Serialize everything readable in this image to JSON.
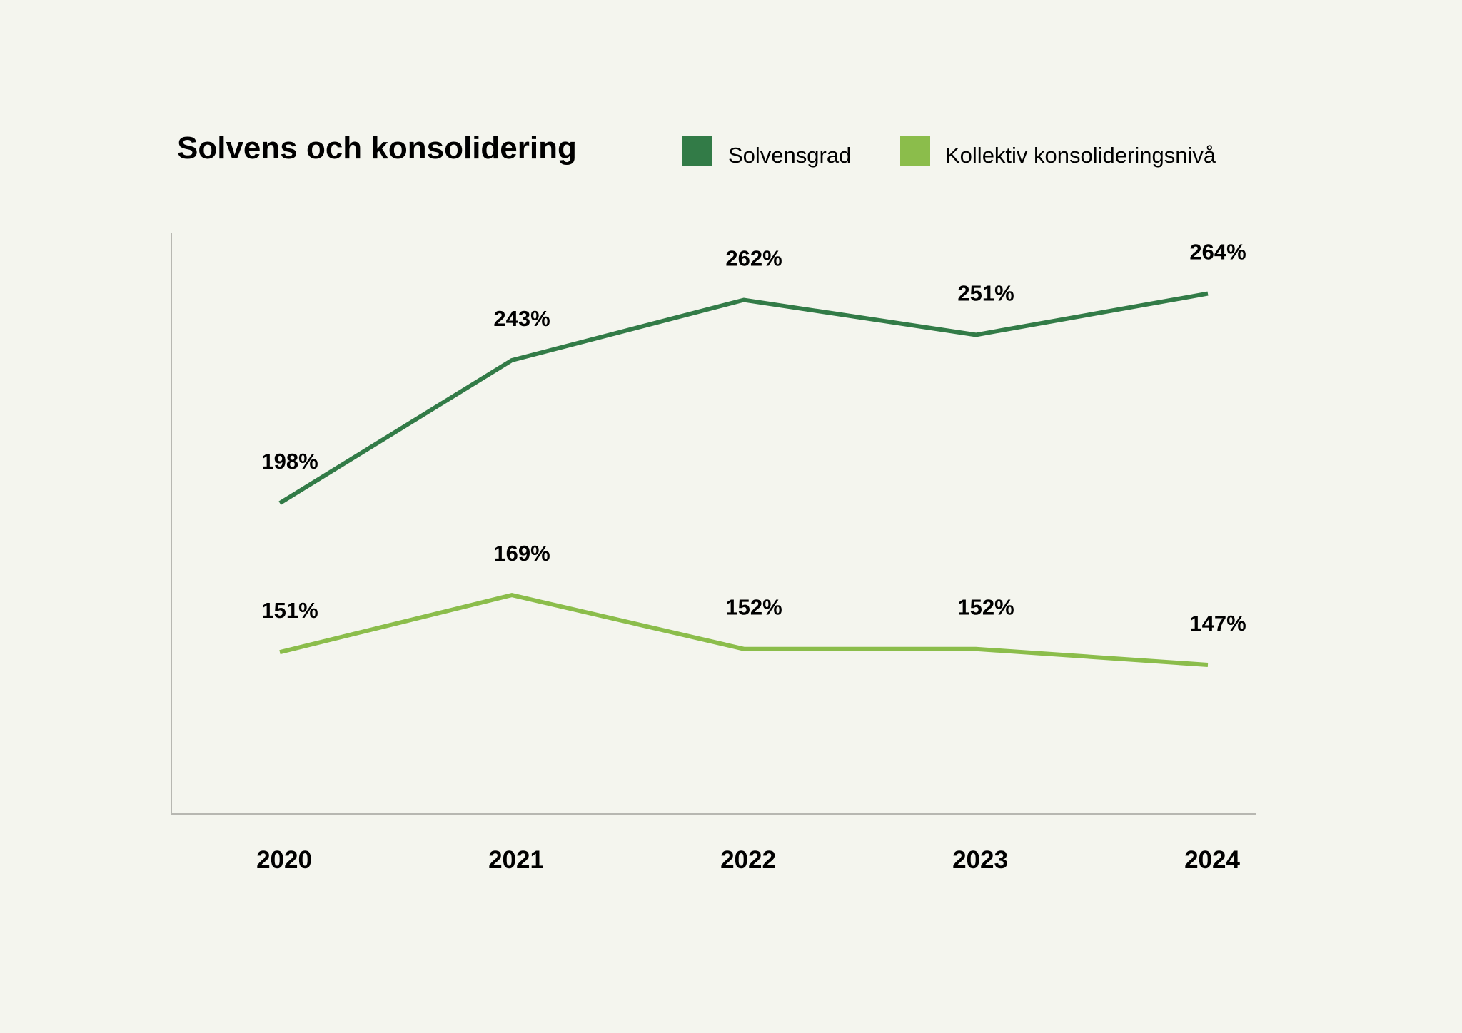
{
  "chart_data": {
    "type": "line",
    "title": "Solvens och konsolidering",
    "xlabel": "",
    "ylabel": "",
    "categories": [
      "2020",
      "2021",
      "2022",
      "2023",
      "2024"
    ],
    "series": [
      {
        "name": "Solvensgrad",
        "values": [
          198,
          243,
          262,
          251,
          264
        ],
        "labels": [
          "198%",
          "243%",
          "262%",
          "251%",
          "264%"
        ],
        "color": "#327b47"
      },
      {
        "name": "Kollektiv konsolideringsnivå",
        "values": [
          151,
          169,
          152,
          152,
          147
        ],
        "labels": [
          "151%",
          "169%",
          "152%",
          "152%",
          "147%"
        ],
        "color": "#8bbd4b"
      }
    ],
    "ylim": [
      100,
      290
    ],
    "grid": false,
    "legend_position": "top-right"
  }
}
